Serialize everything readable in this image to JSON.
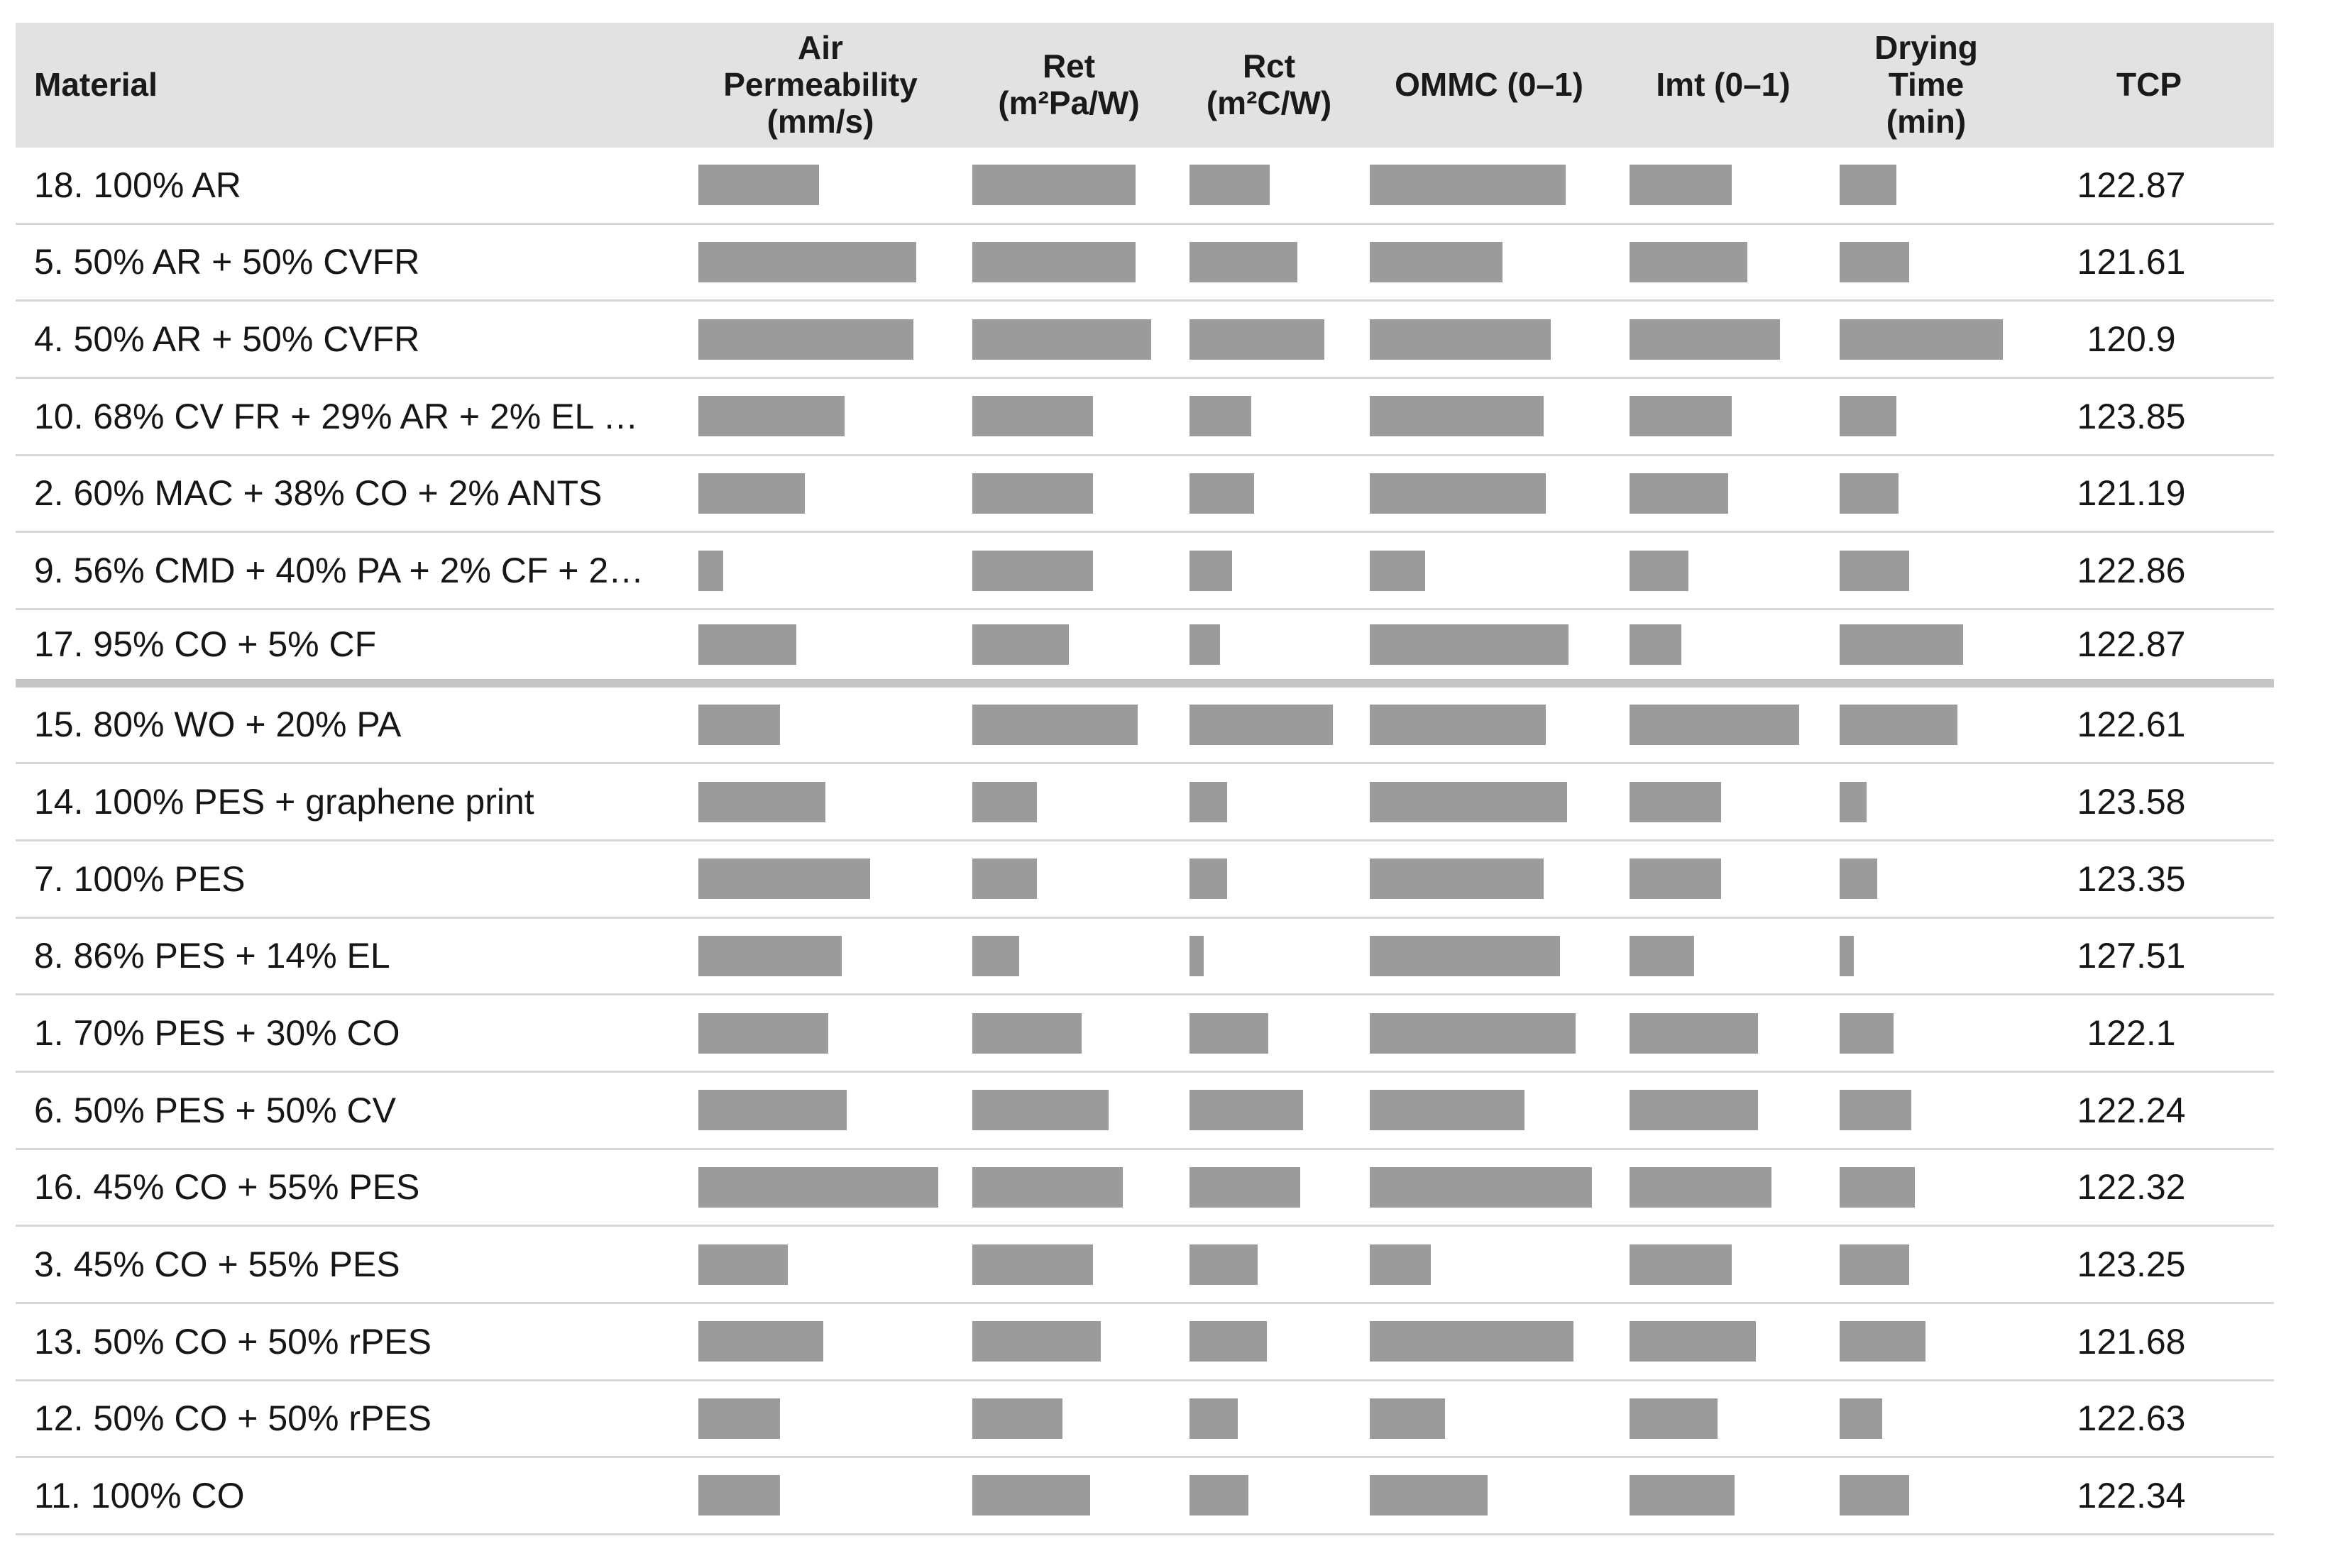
{
  "colors": {
    "bar": "#9b9b9b",
    "header_background": "#e2e2e2",
    "row_border": "#d6d6d6",
    "group_separator": "#c6c6c6",
    "text": "#161616"
  },
  "chart_data": {
    "type": "table",
    "title": "",
    "note": "bar cells encode relative magnitudes only (no numeric labels shown); bar values below are rendered bar lengths in px",
    "columns": [
      {
        "id": "material",
        "label": "Material",
        "type": "text"
      },
      {
        "id": "air_permeability",
        "label": "Air Permeability (mm/s)",
        "type": "bar"
      },
      {
        "id": "ret",
        "label": "Ret (m²Pa/W)",
        "type": "bar"
      },
      {
        "id": "rct",
        "label": "Rct (m²C/W)",
        "type": "bar"
      },
      {
        "id": "ommc",
        "label": "OMMC (0–1)",
        "type": "bar"
      },
      {
        "id": "imt",
        "label": "Imt (0–1)",
        "type": "bar"
      },
      {
        "id": "drying_time",
        "label": "Drying Time (min)",
        "type": "bar"
      },
      {
        "id": "tcp",
        "label": "TCP",
        "type": "number"
      }
    ],
    "separator_after_row": 7,
    "rows": [
      {
        "material": "18. 100% AR",
        "bars": [
          170,
          230,
          113,
          276,
          144,
          80
        ],
        "tcp": "122.87"
      },
      {
        "material": "5. 50% AR + 50% CVFR",
        "bars": [
          307,
          230,
          152,
          187,
          166,
          98
        ],
        "tcp": "121.61"
      },
      {
        "material": "4. 50% AR + 50% CVFR",
        "bars": [
          303,
          252,
          190,
          255,
          212,
          230
        ],
        "tcp": "120.9"
      },
      {
        "material": "10. 68% CV FR + 29% AR + 2% EL …",
        "bars": [
          206,
          170,
          87,
          245,
          144,
          80
        ],
        "tcp": "123.85"
      },
      {
        "material": "2. 60% MAC + 38% CO + 2% ANTS",
        "bars": [
          150,
          170,
          91,
          248,
          139,
          83
        ],
        "tcp": "121.19"
      },
      {
        "material": "9. 56% CMD + 40% PA + 2% CF + 2…",
        "bars": [
          35,
          170,
          60,
          78,
          83,
          98
        ],
        "tcp": "122.86"
      },
      {
        "material": "17. 95% CO + 5% CF",
        "bars": [
          138,
          136,
          43,
          280,
          73,
          174
        ],
        "tcp": "122.87"
      },
      {
        "material": "15. 80% WO + 20% PA",
        "bars": [
          115,
          233,
          202,
          248,
          239,
          166
        ],
        "tcp": "122.61"
      },
      {
        "material": "14. 100% PES + graphene print",
        "bars": [
          179,
          91,
          53,
          278,
          129,
          38
        ],
        "tcp": "123.58"
      },
      {
        "material": "7. 100% PES",
        "bars": [
          242,
          91,
          53,
          245,
          129,
          53
        ],
        "tcp": "123.35"
      },
      {
        "material": "8. 86% PES + 14% EL",
        "bars": [
          202,
          66,
          20,
          268,
          91,
          20
        ],
        "tcp": "127.51"
      },
      {
        "material": "1. 70% PES + 30% CO",
        "bars": [
          183,
          154,
          111,
          290,
          181,
          76
        ],
        "tcp": "122.1"
      },
      {
        "material": "6. 50% PES + 50% CV",
        "bars": [
          209,
          192,
          160,
          218,
          181,
          101
        ],
        "tcp": "122.24"
      },
      {
        "material": "16. 45% CO + 55% PES",
        "bars": [
          338,
          212,
          156,
          313,
          200,
          106
        ],
        "tcp": "122.32"
      },
      {
        "material": "3. 45% CO + 55% PES",
        "bars": [
          126,
          170,
          96,
          86,
          144,
          98
        ],
        "tcp": "123.25"
      },
      {
        "material": "13. 50% CO + 50% rPES",
        "bars": [
          176,
          181,
          109,
          287,
          178,
          121
        ],
        "tcp": "121.68"
      },
      {
        "material": "12. 50% CO + 50% rPES",
        "bars": [
          115,
          127,
          68,
          106,
          124,
          60
        ],
        "tcp": "122.63"
      },
      {
        "material": "11. 100% CO",
        "bars": [
          115,
          166,
          83,
          166,
          148,
          98
        ],
        "tcp": "122.34"
      }
    ]
  }
}
